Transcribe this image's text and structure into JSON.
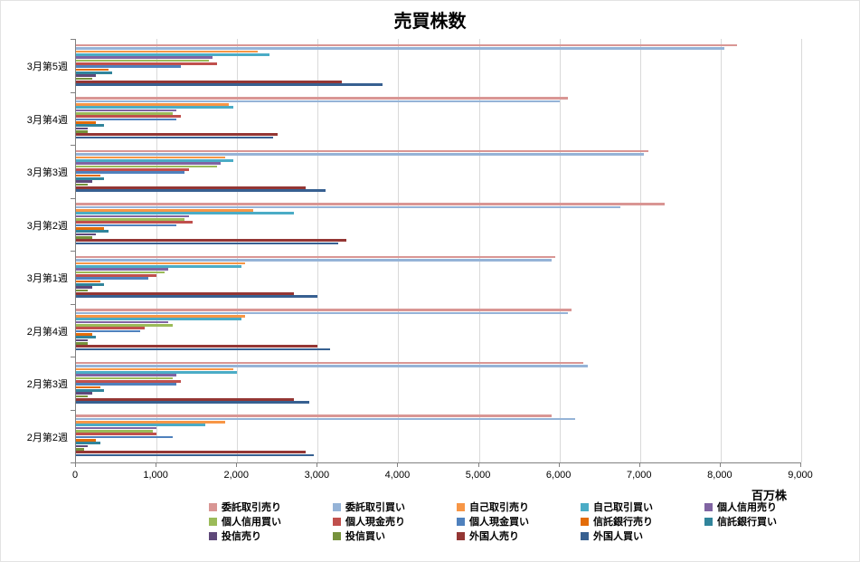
{
  "chart_data": {
    "type": "bar",
    "orientation": "horizontal",
    "title": "売買株数",
    "unit": "百万株",
    "legend_position": "bottom",
    "grid": true,
    "xlim": [
      0,
      9000
    ],
    "x_ticks": [
      "0",
      "1,000",
      "2,000",
      "3,000",
      "4,000",
      "5,000",
      "6,000",
      "7,000",
      "8,000",
      "9,000"
    ],
    "categories": [
      "3月第5週",
      "3月第4週",
      "3月第3週",
      "3月第2週",
      "3月第1週",
      "2月第4週",
      "2月第3週",
      "2月第2週"
    ],
    "series": [
      {
        "name": "委託取引売り",
        "color": "#d99694",
        "values": [
          8200,
          6100,
          7100,
          7300,
          5950,
          6150,
          6300,
          5900
        ]
      },
      {
        "name": "委託取引買い",
        "color": "#95b3d7",
        "values": [
          8050,
          6000,
          7050,
          6750,
          5900,
          6100,
          6350,
          6200
        ]
      },
      {
        "name": "自己取引売り",
        "color": "#f79646",
        "values": [
          2250,
          1900,
          1850,
          2200,
          2100,
          2100,
          1950,
          1850
        ]
      },
      {
        "name": "自己取引買い",
        "color": "#4bacc6",
        "values": [
          2400,
          1950,
          1950,
          2700,
          2050,
          2050,
          2000,
          1600
        ]
      },
      {
        "name": "個人信用売り",
        "color": "#8064a2",
        "values": [
          1700,
          1250,
          1800,
          1400,
          1150,
          1150,
          1250,
          1000
        ]
      },
      {
        "name": "個人信用買い",
        "color": "#9bbb59",
        "values": [
          1650,
          1200,
          1750,
          1350,
          1100,
          1200,
          1200,
          950
        ]
      },
      {
        "name": "個人現金売り",
        "color": "#c0504d",
        "values": [
          1750,
          1300,
          1400,
          1450,
          1000,
          850,
          1300,
          1000
        ]
      },
      {
        "name": "個人現金買い",
        "color": "#4f81bd",
        "values": [
          1300,
          1250,
          1350,
          1250,
          900,
          800,
          1250,
          1200
        ]
      },
      {
        "name": "信託銀行売り",
        "color": "#e36c09",
        "values": [
          400,
          250,
          300,
          350,
          300,
          200,
          300,
          250
        ]
      },
      {
        "name": "信託銀行買い",
        "color": "#31849b",
        "values": [
          450,
          350,
          350,
          400,
          350,
          250,
          350,
          300
        ]
      },
      {
        "name": "投信売り",
        "color": "#5f497a",
        "values": [
          250,
          150,
          200,
          250,
          200,
          150,
          200,
          150
        ]
      },
      {
        "name": "投信買い",
        "color": "#76923c",
        "values": [
          200,
          150,
          150,
          200,
          150,
          150,
          150,
          100
        ]
      },
      {
        "name": "外国人売り",
        "color": "#943634",
        "values": [
          3300,
          2500,
          2850,
          3350,
          2700,
          3000,
          2700,
          2850
        ]
      },
      {
        "name": "外国人買い",
        "color": "#376091",
        "values": [
          3800,
          2450,
          3100,
          3250,
          3000,
          3150,
          2900,
          2950
        ]
      }
    ]
  }
}
